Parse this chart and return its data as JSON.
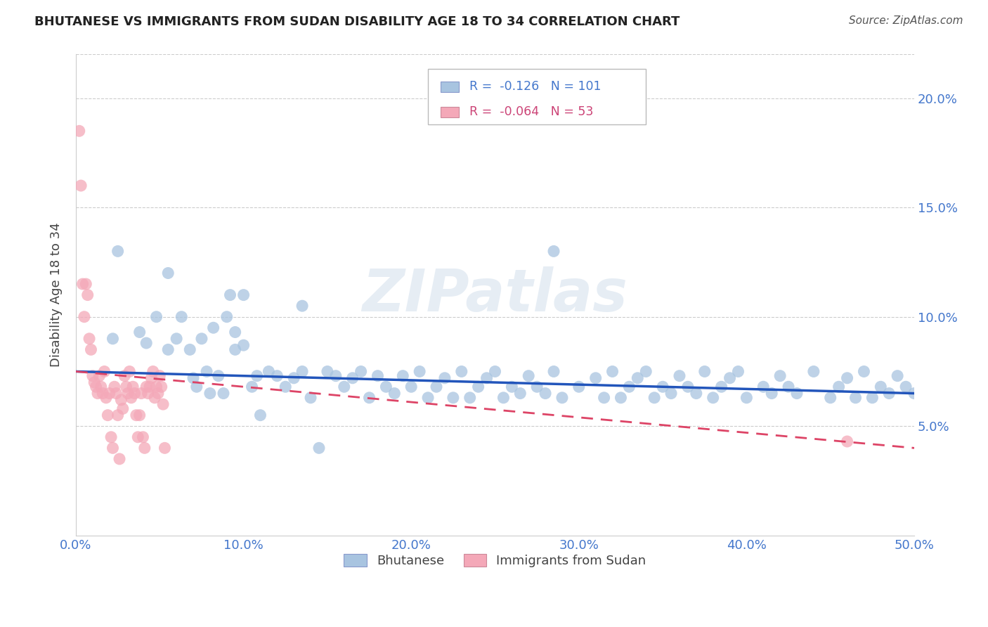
{
  "title": "BHUTANESE VS IMMIGRANTS FROM SUDAN DISABILITY AGE 18 TO 34 CORRELATION CHART",
  "source": "Source: ZipAtlas.com",
  "ylabel": "Disability Age 18 to 34",
  "watermark": "ZIPatlas",
  "xmin": 0.0,
  "xmax": 0.5,
  "ymin": 0.0,
  "ymax": 0.22,
  "yticks": [
    0.05,
    0.1,
    0.15,
    0.2
  ],
  "xticks": [
    0.0,
    0.1,
    0.2,
    0.3,
    0.4,
    0.5
  ],
  "xtick_labels": [
    "0.0%",
    "10.0%",
    "20.0%",
    "30.0%",
    "40.0%",
    "50.0%"
  ],
  "ytick_labels": [
    "5.0%",
    "10.0%",
    "15.0%",
    "20.0%"
  ],
  "blue_color": "#A8C4E0",
  "pink_color": "#F4A8B8",
  "blue_line_color": "#2255BB",
  "pink_line_color": "#DD4466",
  "legend_r_blue": "-0.126",
  "legend_n_blue": "101",
  "legend_r_pink": "-0.064",
  "legend_n_pink": "53",
  "blue_x": [
    0.022,
    0.025,
    0.038,
    0.042,
    0.048,
    0.055,
    0.06,
    0.063,
    0.068,
    0.07,
    0.072,
    0.075,
    0.078,
    0.08,
    0.082,
    0.085,
    0.088,
    0.09,
    0.092,
    0.095,
    0.1,
    0.105,
    0.108,
    0.11,
    0.115,
    0.12,
    0.125,
    0.13,
    0.135,
    0.14,
    0.145,
    0.15,
    0.155,
    0.16,
    0.165,
    0.17,
    0.175,
    0.18,
    0.185,
    0.19,
    0.195,
    0.2,
    0.205,
    0.21,
    0.215,
    0.22,
    0.225,
    0.23,
    0.235,
    0.24,
    0.245,
    0.25,
    0.255,
    0.26,
    0.265,
    0.27,
    0.275,
    0.28,
    0.285,
    0.29,
    0.3,
    0.31,
    0.315,
    0.32,
    0.325,
    0.33,
    0.335,
    0.34,
    0.345,
    0.35,
    0.355,
    0.36,
    0.365,
    0.37,
    0.375,
    0.38,
    0.385,
    0.39,
    0.395,
    0.4,
    0.41,
    0.415,
    0.42,
    0.425,
    0.43,
    0.44,
    0.45,
    0.455,
    0.46,
    0.465,
    0.47,
    0.475,
    0.48,
    0.485,
    0.49,
    0.495,
    0.5,
    0.055,
    0.095,
    0.1,
    0.135,
    0.285
  ],
  "blue_y": [
    0.09,
    0.13,
    0.093,
    0.088,
    0.1,
    0.085,
    0.09,
    0.1,
    0.085,
    0.072,
    0.068,
    0.09,
    0.075,
    0.065,
    0.095,
    0.073,
    0.065,
    0.1,
    0.11,
    0.085,
    0.087,
    0.068,
    0.073,
    0.055,
    0.075,
    0.073,
    0.068,
    0.072,
    0.075,
    0.063,
    0.04,
    0.075,
    0.073,
    0.068,
    0.072,
    0.075,
    0.063,
    0.073,
    0.068,
    0.065,
    0.073,
    0.068,
    0.075,
    0.063,
    0.068,
    0.072,
    0.063,
    0.075,
    0.063,
    0.068,
    0.072,
    0.075,
    0.063,
    0.068,
    0.065,
    0.073,
    0.068,
    0.065,
    0.075,
    0.063,
    0.068,
    0.072,
    0.063,
    0.075,
    0.063,
    0.068,
    0.072,
    0.075,
    0.063,
    0.068,
    0.065,
    0.073,
    0.068,
    0.065,
    0.075,
    0.063,
    0.068,
    0.072,
    0.075,
    0.063,
    0.068,
    0.065,
    0.073,
    0.068,
    0.065,
    0.075,
    0.063,
    0.068,
    0.072,
    0.063,
    0.075,
    0.063,
    0.068,
    0.065,
    0.073,
    0.068,
    0.065,
    0.12,
    0.093,
    0.11,
    0.105,
    0.13
  ],
  "pink_x": [
    0.002,
    0.003,
    0.004,
    0.005,
    0.006,
    0.007,
    0.008,
    0.009,
    0.01,
    0.011,
    0.012,
    0.013,
    0.014,
    0.015,
    0.016,
    0.017,
    0.018,
    0.019,
    0.02,
    0.021,
    0.022,
    0.023,
    0.024,
    0.025,
    0.026,
    0.027,
    0.028,
    0.029,
    0.03,
    0.031,
    0.032,
    0.033,
    0.034,
    0.035,
    0.036,
    0.037,
    0.038,
    0.039,
    0.04,
    0.041,
    0.042,
    0.043,
    0.044,
    0.045,
    0.046,
    0.047,
    0.048,
    0.049,
    0.05,
    0.051,
    0.052,
    0.053,
    0.46
  ],
  "pink_y": [
    0.185,
    0.16,
    0.115,
    0.1,
    0.115,
    0.11,
    0.09,
    0.085,
    0.073,
    0.07,
    0.068,
    0.065,
    0.073,
    0.068,
    0.065,
    0.075,
    0.063,
    0.055,
    0.065,
    0.045,
    0.04,
    0.068,
    0.065,
    0.055,
    0.035,
    0.062,
    0.058,
    0.073,
    0.068,
    0.065,
    0.075,
    0.063,
    0.068,
    0.065,
    0.055,
    0.045,
    0.055,
    0.065,
    0.045,
    0.04,
    0.068,
    0.065,
    0.068,
    0.072,
    0.075,
    0.063,
    0.068,
    0.065,
    0.073,
    0.068,
    0.06,
    0.04,
    0.043
  ]
}
